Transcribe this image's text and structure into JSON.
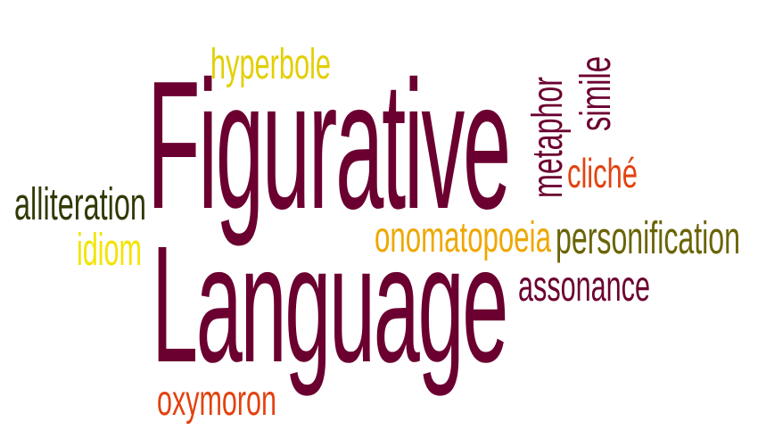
{
  "word_cloud": {
    "words": [
      {
        "key": "figurative",
        "text": "Figurative",
        "color": "#6B0030"
      },
      {
        "key": "language",
        "text": "Language",
        "color": "#6B0030"
      },
      {
        "key": "hyperbole",
        "text": "hyperbole",
        "color": "#E3CF00"
      },
      {
        "key": "metaphor",
        "text": "metaphor",
        "color": "#6B0030"
      },
      {
        "key": "simile",
        "text": "simile",
        "color": "#6B0030"
      },
      {
        "key": "cliche",
        "text": "cliché",
        "color": "#E2420F"
      },
      {
        "key": "alliteration",
        "text": "alliteration",
        "color": "#2F3A04"
      },
      {
        "key": "idiom",
        "text": "idiom",
        "color": "#F2E400"
      },
      {
        "key": "onomatopoeia",
        "text": "onomatopoeia",
        "color": "#EFA700"
      },
      {
        "key": "personification",
        "text": "personification",
        "color": "#6B6406"
      },
      {
        "key": "assonance",
        "text": "assonance",
        "color": "#6B0030"
      },
      {
        "key": "oxymoron",
        "text": "oxymoron",
        "color": "#E2420F"
      }
    ]
  }
}
